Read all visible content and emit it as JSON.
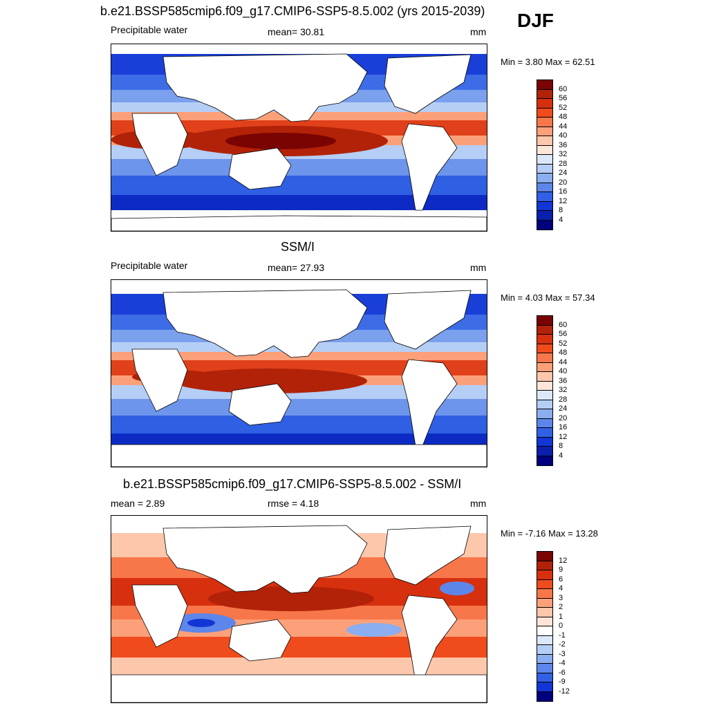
{
  "season": "DJF",
  "panels": [
    {
      "title": "b.e21.BSSP585cmip6.f09_g17.CMIP6-SSP5-8.5.002 (yrs 2015-2039)",
      "left_label": "Precipitable water",
      "center_label": "mean=  30.81",
      "units": "mm",
      "minmax": "Min =   3.80 Max =  62.51",
      "colorbar_labels": [
        "60",
        "56",
        "52",
        "48",
        "44",
        "40",
        "36",
        "32",
        "28",
        "24",
        "20",
        "16",
        "12",
        "8",
        "4"
      ]
    },
    {
      "title": "SSM/I",
      "left_label": "Precipitable water",
      "center_label": "mean=  27.93",
      "units": "mm",
      "minmax": "Min =   4.03 Max =  57.34",
      "colorbar_labels": [
        "60",
        "56",
        "52",
        "48",
        "44",
        "40",
        "36",
        "32",
        "28",
        "24",
        "20",
        "16",
        "12",
        "8",
        "4"
      ]
    },
    {
      "title": "b.e21.BSSP585cmip6.f09_g17.CMIP6-SSP5-8.5.002 - SSM/I",
      "left_label": "mean =   2.89",
      "center_label": "rmse =   4.18",
      "units": "mm",
      "minmax": "Min =  -7.16 Max =  13.28",
      "colorbar_labels": [
        "12",
        "9",
        "6",
        "4",
        "3",
        "2",
        "1",
        "0",
        "-1",
        "-2",
        "-3",
        "-4",
        "-6",
        "-9",
        "-12"
      ]
    }
  ],
  "colors": {
    "abs_scale": [
      "#7a0403",
      "#b22208",
      "#d7300f",
      "#f04b1c",
      "#f8774a",
      "#fca07a",
      "#fdc7ab",
      "#fde6d8",
      "#dbe8fa",
      "#b5cef5",
      "#8aaeef",
      "#5d86ea",
      "#3160e5",
      "#1235d6",
      "#0a1fad",
      "#00007e"
    ],
    "diff_scale": [
      "#7a0403",
      "#b22208",
      "#d7300f",
      "#f04b1c",
      "#f8774a",
      "#fca07a",
      "#fdc7ab",
      "#fde6d8",
      "#ffffff",
      "#dbe8fa",
      "#b5cef5",
      "#8aaeef",
      "#5d86ea",
      "#3160e5",
      "#1235d6",
      "#00007e"
    ],
    "land": "#ffffff",
    "coast": "#000000"
  }
}
